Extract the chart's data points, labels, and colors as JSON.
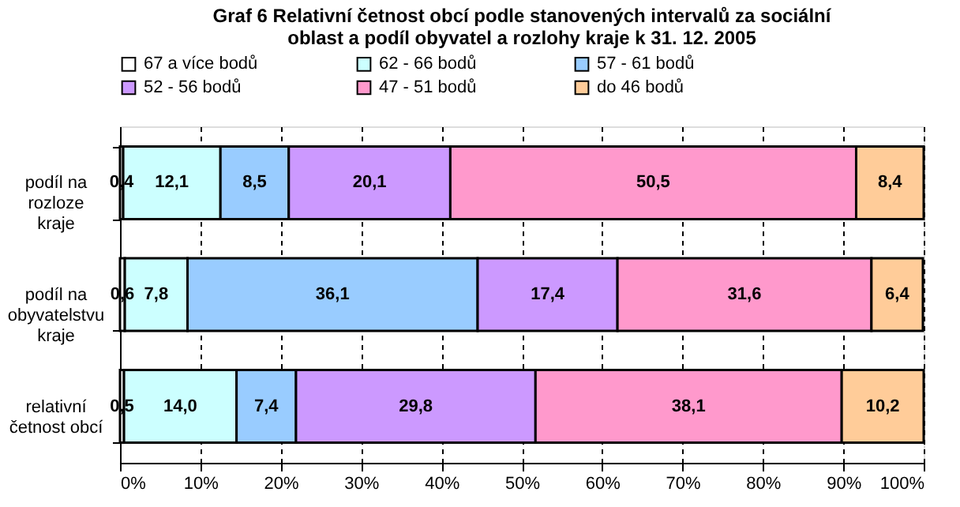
{
  "chart_data": {
    "type": "bar",
    "orientation": "horizontal",
    "stacked": true,
    "title": "Graf 6 Relativní četnost obcí podle stanovených intervalů za sociální oblast a podíl obyvatel a rozlohy kraje k 31. 12. 2005",
    "categories": [
      "podíl na rozloze kraje",
      "podíl na obyvatelstvu kraje",
      "relativní četnost obcí"
    ],
    "series": [
      {
        "name": "67 a více bodů",
        "color": "#ffffff",
        "values": [
          0.4,
          0.6,
          0.5
        ],
        "value_labels": [
          "0,4",
          "0,6",
          "0,5"
        ]
      },
      {
        "name": "62 - 66 bodů",
        "color": "#ccffff",
        "values": [
          12.1,
          7.8,
          14.0
        ],
        "value_labels": [
          "12,1",
          "7,8",
          "14,0"
        ]
      },
      {
        "name": "57 - 61 bodů",
        "color": "#99ccff",
        "values": [
          8.5,
          36.1,
          7.4
        ],
        "value_labels": [
          "8,5",
          "36,1",
          "7,4"
        ]
      },
      {
        "name": "52 - 56 bodů",
        "color": "#cc99ff",
        "values": [
          20.1,
          17.4,
          29.8
        ],
        "value_labels": [
          "20,1",
          "17,4",
          "29,8"
        ]
      },
      {
        "name": "47 - 51 bodů",
        "color": "#ff99cc",
        "values": [
          50.5,
          31.6,
          38.1
        ],
        "value_labels": [
          "50,5",
          "31,6",
          "38,1"
        ]
      },
      {
        "name": "do 46 bodů",
        "color": "#ffcc99",
        "values": [
          8.4,
          6.4,
          10.2
        ],
        "value_labels": [
          "8,4",
          "6,4",
          "10,2"
        ]
      }
    ],
    "xlim": [
      0,
      100
    ],
    "xticks": [
      {
        "value": 0,
        "label": "0%"
      },
      {
        "value": 10,
        "label": "10%"
      },
      {
        "value": 20,
        "label": "20%"
      },
      {
        "value": 30,
        "label": "30%"
      },
      {
        "value": 40,
        "label": "40%"
      },
      {
        "value": 50,
        "label": "50%"
      },
      {
        "value": 60,
        "label": "60%"
      },
      {
        "value": 70,
        "label": "70%"
      },
      {
        "value": 80,
        "label": "80%"
      },
      {
        "value": 90,
        "label": "90%"
      },
      {
        "value": 100,
        "label": "100%"
      }
    ],
    "grid": "x",
    "legend": "top"
  }
}
